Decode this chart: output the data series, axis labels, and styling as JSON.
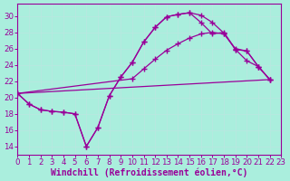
{
  "background_color": "#aaeedd",
  "grid_color": "#cceeee",
  "line_color": "#990099",
  "marker": "+",
  "marker_size": 4,
  "marker_linewidth": 1.0,
  "line_width": 0.9,
  "xlabel": "Windchill (Refroidissement éolien,°C)",
  "xlabel_fontsize": 7.0,
  "tick_fontsize": 6.2,
  "ylim": [
    13.0,
    31.5
  ],
  "xlim": [
    0,
    23
  ],
  "yticks": [
    14,
    16,
    18,
    20,
    22,
    24,
    26,
    28,
    30
  ],
  "xticks": [
    0,
    1,
    2,
    3,
    4,
    5,
    6,
    7,
    8,
    9,
    10,
    11,
    12,
    13,
    14,
    15,
    16,
    17,
    18,
    19,
    20,
    21,
    22,
    23
  ],
  "curves": [
    {
      "x": [
        0,
        1,
        2,
        3,
        4,
        5,
        6,
        7,
        8,
        9,
        10,
        11,
        12,
        13,
        14,
        15,
        16,
        17,
        18,
        19,
        20,
        21,
        22
      ],
      "y": [
        20.5,
        19.2,
        18.5,
        18.3,
        18.2,
        18.0,
        14.0,
        16.3,
        20.2,
        22.5,
        24.3,
        26.8,
        28.6,
        29.9,
        30.2,
        30.4,
        30.1,
        29.2,
        27.9,
        25.9,
        25.7,
        23.8,
        22.2
      ],
      "markers": true
    },
    {
      "x": [
        0,
        1,
        2,
        3,
        4,
        5,
        6,
        7,
        8,
        9,
        10,
        11,
        12,
        13,
        14,
        15,
        16,
        17,
        18,
        19,
        20,
        21,
        22
      ],
      "y": [
        20.5,
        19.2,
        18.5,
        18.3,
        18.2,
        18.0,
        14.0,
        16.3,
        20.2,
        22.5,
        24.3,
        26.8,
        28.6,
        29.9,
        30.2,
        30.4,
        29.2,
        27.8,
        28.0,
        25.9,
        24.5,
        23.8,
        22.2
      ],
      "markers": true
    },
    {
      "x": [
        0,
        10,
        11,
        12,
        13,
        14,
        15,
        16,
        17,
        18,
        19,
        20,
        21,
        22
      ],
      "y": [
        20.5,
        22.3,
        23.5,
        24.7,
        25.8,
        26.6,
        27.3,
        27.8,
        28.0,
        27.8,
        26.0,
        25.7,
        23.8,
        22.2
      ],
      "markers": true
    },
    {
      "x": [
        0,
        22
      ],
      "y": [
        20.5,
        22.2
      ],
      "markers": false
    }
  ]
}
